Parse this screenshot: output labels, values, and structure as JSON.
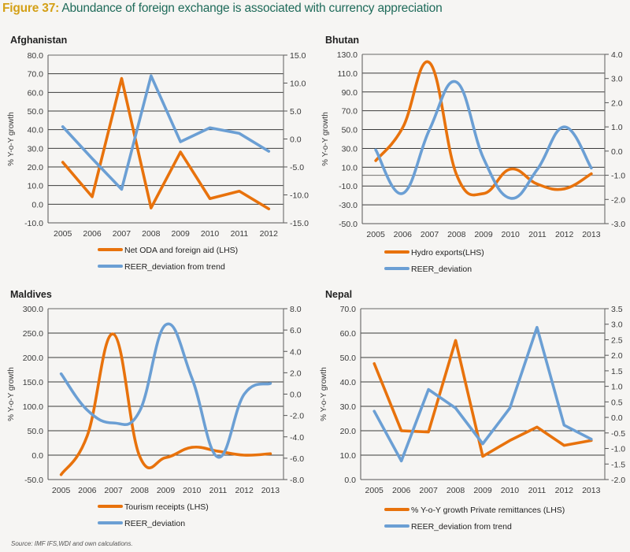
{
  "figure": {
    "label": "Figure 37:",
    "title": "Abundance of foreign exchange is associated with currency appreciation",
    "source": "Source: IMF IFS,WDI and own calculations."
  },
  "colors": {
    "lhs_series": "#e8720c",
    "rhs_series": "#6b9fd4",
    "grid": "#1a1a1a",
    "background": "#f6f5f3"
  },
  "chart_data": [
    {
      "type": "line",
      "title": "Afghanistan",
      "ylabel": "% Y-o-Y growth",
      "categories": [
        "2005",
        "2006",
        "2007",
        "2008",
        "2009",
        "2010",
        "2011",
        "2012"
      ],
      "ylim": [
        -10,
        80
      ],
      "yticks": [
        "80.0",
        "70.0",
        "60.0",
        "50.0",
        "40.0",
        "30.0",
        "20.0",
        "10.0",
        "0.0",
        "-10.0"
      ],
      "y2lim": [
        -15,
        15
      ],
      "y2ticks": [
        "15.0",
        "10.0",
        "5.0",
        "0.0",
        "-5.0",
        "-10.0",
        "-15.0"
      ],
      "smooth": false,
      "series": [
        {
          "name": "Net ODA  and foreign aid (LHS)",
          "axis": "left",
          "values": [
            22.5,
            4,
            67.5,
            -2,
            28,
            3,
            7,
            -2.5
          ]
        },
        {
          "name": "REER_deviation from trend",
          "axis": "right",
          "values": [
            2.2,
            -3.5,
            -9,
            11.3,
            -0.5,
            2,
            1,
            -2.2
          ]
        }
      ]
    },
    {
      "type": "line",
      "title": "Bhutan",
      "ylabel": "% Y-o-Y growth",
      "categories": [
        "2005",
        "2006",
        "2007",
        "2008",
        "2009",
        "2010",
        "2011",
        "2012",
        "2013"
      ],
      "ylim": [
        -50,
        130
      ],
      "yticks": [
        "130.0",
        "110.0",
        "90.0",
        "70.0",
        "50.0",
        "30.0",
        "10.0",
        "-10.0",
        "-30.0",
        "-50.0"
      ],
      "y2lim": [
        -3,
        4
      ],
      "y2ticks": [
        "4.0",
        "3.0",
        "2.0",
        "1.0",
        "0.0",
        "-1.0",
        "-2.0",
        "-3.0"
      ],
      "smooth": true,
      "series": [
        {
          "name": "Hydro exports(LHS)",
          "axis": "left",
          "values": [
            17,
            52,
            121,
            2,
            -18,
            8,
            -8,
            -13,
            3
          ]
        },
        {
          "name": "REER_deviation",
          "axis": "right",
          "values": [
            0.05,
            -1.75,
            0.9,
            2.85,
            -0.3,
            -1.95,
            -0.75,
            1.0,
            -0.7
          ]
        }
      ]
    },
    {
      "type": "line",
      "title": "Maldives",
      "ylabel": "% Y-o-Y growth",
      "categories": [
        "2005",
        "2006",
        "2007",
        "2008",
        "2009",
        "2010",
        "2011",
        "2012",
        "2013"
      ],
      "ylim": [
        -50,
        300
      ],
      "yticks": [
        "300.0",
        "250.0",
        "200.0",
        "150.0",
        "100.0",
        "50.0",
        "0.0",
        "-50.0"
      ],
      "y2lim": [
        -8,
        8
      ],
      "y2ticks": [
        "8.0",
        "6.0",
        "4.0",
        "2.0",
        "0.0",
        "-2.0",
        "-4.0",
        "-6.0",
        "-8.0"
      ],
      "smooth": true,
      "series": [
        {
          "name": "Tourism receipts (LHS)",
          "axis": "left",
          "values": [
            -40,
            40,
            248,
            -2,
            -5,
            16,
            8,
            0,
            3
          ]
        },
        {
          "name": "REER_deviation",
          "axis": "right",
          "values": [
            1.9,
            -1.5,
            -2.7,
            -1.6,
            6.5,
            1.5,
            -5.9,
            0,
            1
          ]
        }
      ]
    },
    {
      "type": "line",
      "title": "Nepal",
      "ylabel": "% Y-o-Y growth",
      "categories": [
        "2005",
        "2006",
        "2007",
        "2008",
        "2009",
        "2010",
        "2011",
        "2012",
        "2013"
      ],
      "ylim": [
        0,
        70
      ],
      "yticks": [
        "70.0",
        "60.0",
        "50.0",
        "40.0",
        "30.0",
        "20.0",
        "10.0",
        "0.0"
      ],
      "y2lim": [
        -2,
        3.5
      ],
      "y2ticks": [
        "3.5",
        "3.0",
        "2.5",
        "2.0",
        "1.5",
        "1.0",
        "0.5",
        "0.0",
        "-0.5",
        "-1.0",
        "-1.5",
        "-2.0"
      ],
      "smooth": false,
      "series": [
        {
          "name": "% Y-o-Y growth Private remittances (LHS)",
          "axis": "left",
          "values": [
            47.5,
            20,
            19.5,
            57,
            9.5,
            16,
            21.5,
            14,
            16
          ]
        },
        {
          "name": "REER_deviation from trend",
          "axis": "right",
          "values": [
            0.2,
            -1.4,
            0.9,
            0.3,
            -0.85,
            0.3,
            2.9,
            -0.25,
            -0.7
          ]
        }
      ]
    }
  ]
}
